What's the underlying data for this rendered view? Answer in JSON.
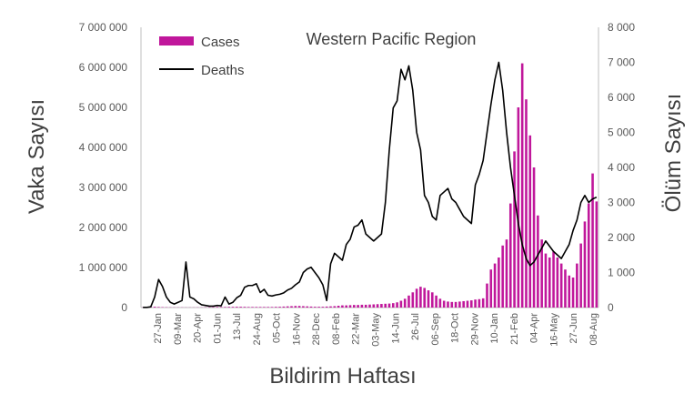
{
  "chart_data": {
    "type": "bar+line",
    "title": "Western Pacific Region",
    "xlabel": "Bildirim Haftası",
    "ylabel_left": "Vaka Sayısı",
    "ylabel_right": "Ölüm Sayısı",
    "ylim_left": [
      0,
      7000000
    ],
    "ylim_right": [
      0,
      8000
    ],
    "yticks_left": [
      "0",
      "1 000 000",
      "2 000 000",
      "3 000 000",
      "4 000 000",
      "5 000 000",
      "6 000 000",
      "7 000 000"
    ],
    "yticks_right": [
      "0",
      "1 000",
      "2 000",
      "3 000",
      "4 000",
      "5 000",
      "6 000",
      "7 000",
      "8 000"
    ],
    "xtick_labels": [
      "27-Jan",
      "09-Mar",
      "20-Apr",
      "01-Jun",
      "13-Jul",
      "24-Aug",
      "05-Oct",
      "16-Nov",
      "28-Dec",
      "08-Feb",
      "22-Mar",
      "03-May",
      "14-Jun",
      "26-Jul",
      "06-Sep",
      "18-Oct",
      "29-Nov",
      "10-Jan",
      "21-Feb",
      "04-Apr",
      "16-May",
      "27-Jun",
      "08-Aug"
    ],
    "legend": {
      "position": "top-left",
      "cases_label": "Cases",
      "deaths_label": "Deaths"
    },
    "colors": {
      "cases": "#C0179B",
      "deaths": "#000000",
      "axis": "#BFBFBF",
      "text": "#595959"
    },
    "grid": false,
    "series": [
      {
        "name": "Cases",
        "type": "bar",
        "axis": "left",
        "values": [
          5000,
          8000,
          15000,
          20000,
          15000,
          10000,
          8000,
          6000,
          5000,
          5000,
          5000,
          4000,
          4000,
          4000,
          5000,
          5000,
          8000,
          10000,
          12000,
          15000,
          15000,
          15000,
          18000,
          18000,
          20000,
          20000,
          18000,
          15000,
          15000,
          15000,
          15000,
          15000,
          15000,
          15000,
          18000,
          20000,
          25000,
          30000,
          35000,
          40000,
          40000,
          35000,
          30000,
          25000,
          20000,
          20000,
          20000,
          25000,
          30000,
          35000,
          45000,
          55000,
          55000,
          60000,
          65000,
          65000,
          70000,
          70000,
          75000,
          80000,
          85000,
          90000,
          95000,
          100000,
          110000,
          130000,
          170000,
          220000,
          300000,
          380000,
          470000,
          520000,
          490000,
          430000,
          380000,
          300000,
          220000,
          170000,
          150000,
          140000,
          140000,
          150000,
          160000,
          170000,
          180000,
          200000,
          210000,
          230000,
          600000,
          950000,
          1100000,
          1250000,
          1550000,
          1700000,
          2600000,
          3900000,
          5000000,
          6100000,
          5200000,
          4300000,
          3500000,
          2300000,
          1700000,
          1350000,
          1250000,
          1400000,
          1250000,
          1100000,
          950000,
          800000,
          750000,
          1100000,
          1600000,
          2150000,
          2600000,
          3350000,
          2650000
        ]
      },
      {
        "name": "Deaths",
        "type": "line",
        "axis": "right",
        "values": [
          5,
          5,
          20,
          300,
          800,
          600,
          300,
          150,
          100,
          150,
          200,
          1300,
          300,
          250,
          150,
          80,
          60,
          40,
          40,
          60,
          50,
          300,
          100,
          150,
          280,
          350,
          580,
          630,
          630,
          680,
          430,
          520,
          350,
          330,
          360,
          380,
          420,
          500,
          550,
          650,
          730,
          1000,
          1100,
          1150,
          1000,
          850,
          650,
          200,
          1250,
          1550,
          1450,
          1350,
          1800,
          1950,
          2300,
          2350,
          2500,
          2100,
          2000,
          1900,
          2000,
          2100,
          3000,
          4500,
          5700,
          5900,
          6800,
          6500,
          6900,
          6200,
          5000,
          4500,
          3200,
          3000,
          2600,
          2500,
          3200,
          3300,
          3400,
          3100,
          3000,
          2800,
          2600,
          2500,
          2400,
          3500,
          3800,
          4200,
          5000,
          5800,
          6500,
          7000,
          6200,
          5000,
          4000,
          3200,
          2400,
          1800,
          1400,
          1200,
          1300,
          1500,
          1700,
          1900,
          1750,
          1600,
          1500,
          1400,
          1600,
          1800,
          2200,
          2500,
          3000,
          3200,
          3000,
          3100,
          3150
        ]
      }
    ]
  }
}
